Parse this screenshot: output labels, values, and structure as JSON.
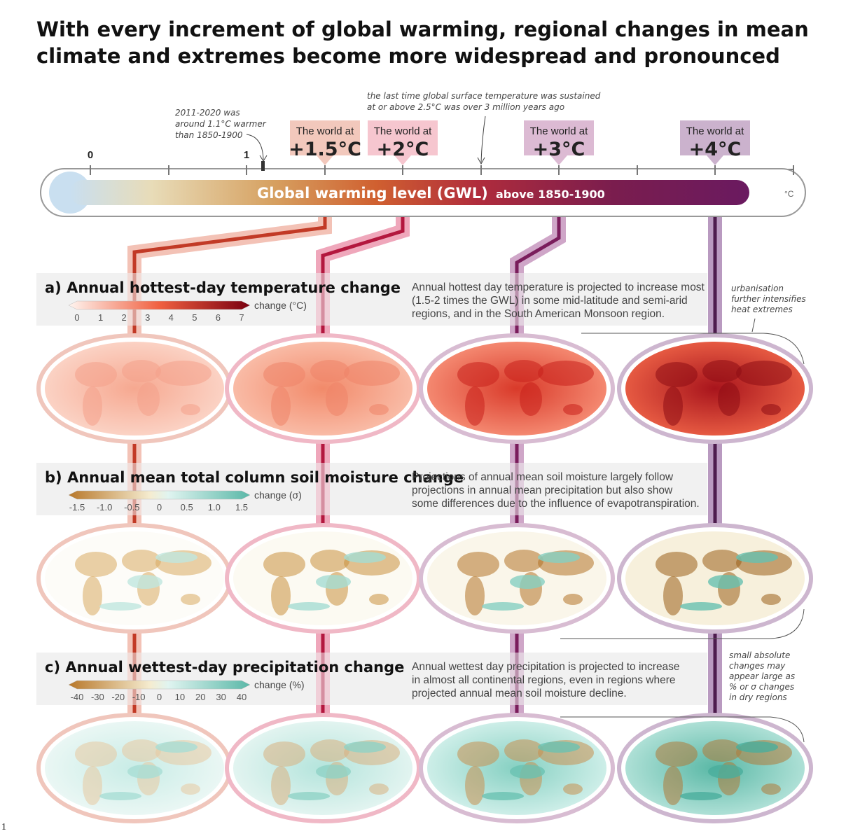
{
  "title_lines": [
    "With every increment of global warming, regional changes in mean",
    "climate and extremes become more widespread and pronounced"
  ],
  "thermometer": {
    "tick_labels": [
      "0",
      "1"
    ],
    "label": "Global warming level (GWL)",
    "sublabel": "above 1850-1900",
    "unit": "°C"
  },
  "annotations": {
    "recent": [
      "2011-2020 was",
      "around 1.1°C warmer",
      "than 1850-1900"
    ],
    "past": [
      "the last time global surface temperature was sustained",
      "at or above 2.5°C was over 3 million years ago"
    ]
  },
  "levels": [
    {
      "prefix": "The world at",
      "value": "+1.5°C"
    },
    {
      "prefix": "The world at",
      "value": "+2°C"
    },
    {
      "prefix": "The world at",
      "value": "+3°C"
    },
    {
      "prefix": "The world at",
      "value": "+4°C"
    }
  ],
  "panels": [
    {
      "title": "a) Annual hottest-day temperature change",
      "unit": "change (°C)",
      "ticks": [
        "0",
        "1",
        "2",
        "3",
        "4",
        "5",
        "6",
        "7"
      ],
      "description": [
        "Annual hottest day temperature is projected to increase most",
        "(1.5-2 times the GWL) in some mid-latitude and semi-arid",
        "regions, and in the South American Monsoon region."
      ]
    },
    {
      "title": "b) Annual mean total column soil moisture change",
      "unit": "change (σ)",
      "ticks": [
        "-1.5",
        "-1.0",
        "-0.5",
        "0",
        "0.5",
        "1.0",
        "1.5"
      ],
      "description": [
        "Projections of annual mean soil moisture largely follow",
        "projections in annual mean precipitation but also show",
        "some differences due to the influence of evapotranspiration."
      ]
    },
    {
      "title": "c) Annual wettest-day precipitation change",
      "unit": "change (%)",
      "ticks": [
        "-40",
        "-30",
        "-20",
        "-10",
        "0",
        "10",
        "20",
        "30",
        "40"
      ],
      "description": [
        "Annual wettest day precipitation is projected to increase",
        "in almost all continental regions, even in regions where",
        "projected annual mean soil moisture decline."
      ]
    }
  ],
  "side_notes": {
    "urban": [
      "urbanisation",
      "further intensifies",
      "heat extremes"
    ],
    "dry": [
      "small absolute",
      "changes may",
      "appear large as",
      "% or σ changes",
      "in dry regions"
    ]
  },
  "page_number": "1"
}
